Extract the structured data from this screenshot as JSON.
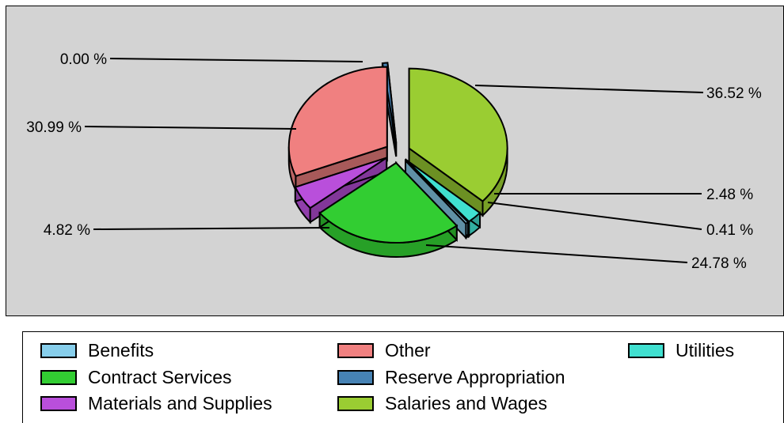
{
  "chart_data": {
    "type": "pie",
    "slices": [
      {
        "name": "Salaries and Wages",
        "value": 36.52,
        "label": "36.52 %",
        "color": "#9acd32"
      },
      {
        "name": "Utilities",
        "value": 2.48,
        "label": "2.48 %",
        "color": "#40e0d0"
      },
      {
        "name": "Benefits",
        "value": 0.41,
        "label": "0.41 %",
        "color": "#87ceeb"
      },
      {
        "name": "Contract Services",
        "value": 24.78,
        "label": "24.78 %",
        "color": "#32cd32"
      },
      {
        "name": "Materials and Supplies",
        "value": 4.82,
        "label": "4.82 %",
        "color": "#b94fdb"
      },
      {
        "name": "Other",
        "value": 30.99,
        "label": "30.99 %",
        "color": "#f08080"
      },
      {
        "name": "Reserve Appropriation",
        "value": 0.0,
        "label": "0.00 %",
        "color": "#4682b4"
      }
    ]
  },
  "legend": {
    "items": [
      {
        "label": "Benefits",
        "color": "#87ceeb"
      },
      {
        "label": "Other",
        "color": "#f08080"
      },
      {
        "label": "Utilities",
        "color": "#40e0d0"
      },
      {
        "label": "Contract Services",
        "color": "#32cd32"
      },
      {
        "label": "Reserve Appropriation",
        "color": "#4682b4"
      },
      {
        "label": "Materials and Supplies",
        "color": "#b94fdb"
      },
      {
        "label": "Salaries and Wages",
        "color": "#9acd32"
      }
    ]
  }
}
